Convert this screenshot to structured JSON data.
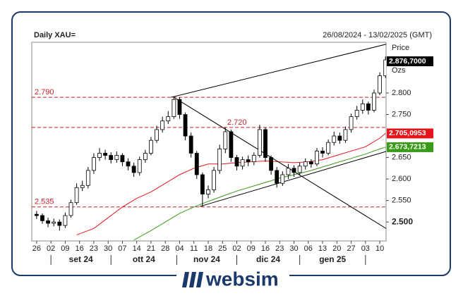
{
  "chart_data": {
    "type": "candlestick",
    "title": "Daily XAU=",
    "subtitle": "26/08/2024 - 13/02/2025 (GMT)",
    "y_axis_label": "Price",
    "y_axis_unit": "Ozs",
    "xlim": [
      -1.7,
      122.2
    ],
    "ylim": [
      2456,
      2918
    ],
    "xticks": [
      {
        "value": 0,
        "label": "26"
      },
      {
        "value": 5,
        "label": "02"
      },
      {
        "value": 10,
        "label": "09"
      },
      {
        "value": 15,
        "label": "16"
      },
      {
        "value": 20,
        "label": "23"
      },
      {
        "value": 25,
        "label": "30"
      },
      {
        "value": 30,
        "label": "07"
      },
      {
        "value": 35,
        "label": "14"
      },
      {
        "value": 40,
        "label": "21"
      },
      {
        "value": 45,
        "label": "28"
      },
      {
        "value": 50,
        "label": "04"
      },
      {
        "value": 55,
        "label": "11"
      },
      {
        "value": 60,
        "label": "18"
      },
      {
        "value": 65,
        "label": "25"
      },
      {
        "value": 70,
        "label": "02"
      },
      {
        "value": 75,
        "label": "09"
      },
      {
        "value": 80,
        "label": "16"
      },
      {
        "value": 85,
        "label": "23"
      },
      {
        "value": 90,
        "label": "30"
      },
      {
        "value": 95,
        "label": "06"
      },
      {
        "value": 100,
        "label": "13"
      },
      {
        "value": 105,
        "label": "20"
      },
      {
        "value": 110,
        "label": "27"
      },
      {
        "value": 115,
        "label": "03"
      },
      {
        "value": 120,
        "label": "10"
      }
    ],
    "months": [
      "set 24",
      "ott 24",
      "nov 24",
      "dic 24",
      "gen 25"
    ],
    "yticks": [
      {
        "value": 2500,
        "label": "2.500"
      },
      {
        "value": 2550,
        "label": "2.550"
      },
      {
        "value": 2600,
        "label": "2.600"
      },
      {
        "value": 2650,
        "label": "2.650"
      },
      {
        "value": 2750,
        "label": "2.750"
      },
      {
        "value": 2800,
        "label": "2.800"
      }
    ],
    "x": [
      0,
      2,
      4,
      6,
      8,
      10,
      12,
      14,
      16,
      18,
      20,
      22,
      24,
      26,
      28,
      30,
      32,
      34,
      36,
      38,
      40,
      42,
      44,
      46,
      48,
      50,
      52,
      54,
      56,
      58,
      60,
      62,
      64,
      66,
      68,
      70,
      72,
      74,
      76,
      78,
      80,
      82,
      84,
      86,
      88,
      90,
      92,
      94,
      96,
      98,
      100,
      102,
      104,
      106,
      108,
      110,
      112,
      114,
      116,
      118,
      120,
      122
    ],
    "open": [
      2518,
      2515,
      2503,
      2497,
      2500,
      2492,
      2515,
      2545,
      2580,
      2585,
      2620,
      2650,
      2660,
      2655,
      2645,
      2655,
      2640,
      2630,
      2615,
      2645,
      2660,
      2690,
      2715,
      2735,
      2745,
      2785,
      2750,
      2700,
      2660,
      2610,
      2565,
      2575,
      2620,
      2670,
      2710,
      2650,
      2630,
      2645,
      2640,
      2655,
      2715,
      2650,
      2620,
      2590,
      2610,
      2625,
      2615,
      2630,
      2640,
      2635,
      2665,
      2660,
      2685,
      2700,
      2690,
      2715,
      2745,
      2760,
      2775,
      2760,
      2800,
      2840
    ],
    "high": [
      2526,
      2520,
      2510,
      2508,
      2506,
      2522,
      2552,
      2590,
      2596,
      2628,
      2660,
      2672,
      2668,
      2662,
      2664,
      2660,
      2648,
      2638,
      2652,
      2668,
      2698,
      2724,
      2745,
      2758,
      2792,
      2790,
      2755,
      2708,
      2665,
      2615,
      2585,
      2628,
      2680,
      2720,
      2715,
      2656,
      2652,
      2655,
      2662,
      2726,
      2720,
      2655,
      2628,
      2618,
      2635,
      2632,
      2638,
      2648,
      2646,
      2672,
      2674,
      2692,
      2710,
      2708,
      2722,
      2752,
      2770,
      2785,
      2780,
      2808,
      2848,
      2885
    ],
    "low": [
      2507,
      2496,
      2488,
      2490,
      2480,
      2486,
      2510,
      2540,
      2572,
      2578,
      2612,
      2642,
      2645,
      2636,
      2638,
      2630,
      2620,
      2605,
      2608,
      2638,
      2655,
      2684,
      2708,
      2728,
      2740,
      2740,
      2690,
      2650,
      2600,
      2536,
      2555,
      2568,
      2612,
      2660,
      2640,
      2620,
      2622,
      2630,
      2632,
      2650,
      2640,
      2610,
      2580,
      2584,
      2600,
      2605,
      2608,
      2622,
      2626,
      2630,
      2650,
      2655,
      2678,
      2682,
      2684,
      2708,
      2738,
      2752,
      2750,
      2755,
      2795,
      2835
    ],
    "close": [
      2515,
      2503,
      2497,
      2500,
      2492,
      2515,
      2545,
      2580,
      2585,
      2620,
      2650,
      2660,
      2655,
      2645,
      2655,
      2640,
      2630,
      2615,
      2645,
      2660,
      2690,
      2715,
      2735,
      2745,
      2785,
      2750,
      2700,
      2660,
      2610,
      2565,
      2575,
      2620,
      2670,
      2710,
      2650,
      2630,
      2645,
      2640,
      2655,
      2715,
      2650,
      2620,
      2590,
      2610,
      2625,
      2615,
      2630,
      2640,
      2635,
      2665,
      2660,
      2685,
      2700,
      2690,
      2715,
      2745,
      2760,
      2775,
      2760,
      2800,
      2840,
      2877
    ],
    "up_color": "#ffffff",
    "down_color": "#000000",
    "last_price_label": "2.876,7000",
    "series": [
      {
        "color": "#e8141c",
        "label": "2.705,0953",
        "x": [
          14,
          20,
          25,
          30,
          35,
          40,
          45,
          50,
          55,
          60,
          65,
          70,
          75,
          80,
          85,
          90,
          95,
          100,
          105,
          110,
          115,
          120,
          122
        ],
        "values": [
          2470,
          2485,
          2510,
          2535,
          2555,
          2570,
          2590,
          2610,
          2625,
          2635,
          2635,
          2638,
          2640,
          2642,
          2640,
          2638,
          2640,
          2645,
          2655,
          2665,
          2675,
          2695,
          2706
        ]
      },
      {
        "color": "#3a9a1a",
        "label": "2.673,7213",
        "x": [
          34,
          40,
          45,
          50,
          55,
          60,
          65,
          70,
          75,
          80,
          85,
          90,
          95,
          100,
          105,
          110,
          115,
          120,
          122
        ],
        "values": [
          2458,
          2480,
          2500,
          2520,
          2535,
          2548,
          2560,
          2572,
          2582,
          2592,
          2602,
          2610,
          2618,
          2628,
          2638,
          2648,
          2658,
          2670,
          2674
        ]
      }
    ],
    "levels": [
      {
        "value": 2790,
        "label": "2.790"
      },
      {
        "value": 2720,
        "label": "2.720"
      },
      {
        "value": 2535,
        "label": "2.535"
      }
    ],
    "trendlines": [
      {
        "x": [
          47,
          125
        ],
        "values": [
          2790,
          2918
        ]
      },
      {
        "x": [
          57,
          122.2
        ],
        "values": [
          2536,
          2664
        ]
      },
      {
        "x": [
          48,
          122.2
        ],
        "values": [
          2790,
          2485
        ]
      }
    ],
    "brand": "websim"
  }
}
